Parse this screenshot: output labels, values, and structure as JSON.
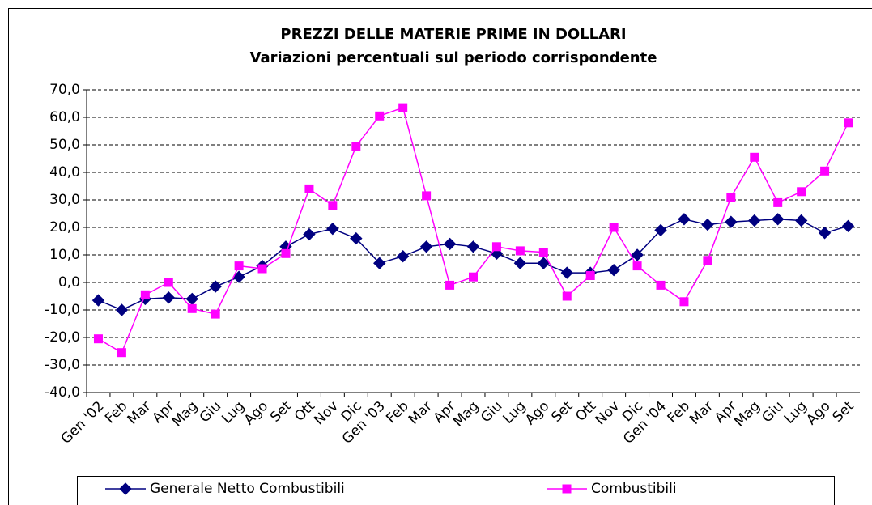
{
  "chart_data": {
    "type": "line",
    "title": "PREZZI DELLE MATERIE PRIME IN DOLLARI",
    "subtitle": "Variazioni percentuali sul periodo corrispondente",
    "categories": [
      "Gen '02",
      "Feb",
      "Mar",
      "Apr",
      "Mag",
      "Giu",
      "Lug",
      "Ago",
      "Set",
      "Ott",
      "Nov",
      "Dic",
      "Gen '03",
      "Feb",
      "Mar",
      "Apr",
      "Mag",
      "Giu",
      "Lug",
      "Ago",
      "Set",
      "Ott",
      "Nov",
      "Dic",
      "Gen '04",
      "Feb",
      "Mar",
      "Apr",
      "Mag",
      "Giu",
      "Lug",
      "Ago",
      "Set"
    ],
    "series": [
      {
        "name": "Generale Netto Combustibili",
        "color": "#000080",
        "marker": "diamond",
        "values": [
          -6.5,
          -10,
          -6,
          -5.5,
          -6,
          -1.5,
          2,
          6,
          13,
          17.5,
          19.5,
          16,
          7,
          9.5,
          13,
          14,
          13,
          10.5,
          7,
          7,
          3.5,
          3.5,
          4.5,
          10,
          19,
          23,
          21,
          22,
          22.5,
          23,
          22.5,
          18,
          20.5
        ]
      },
      {
        "name": "Combustibili",
        "color": "#ff00ff",
        "marker": "square",
        "values": [
          -20.5,
          -25.5,
          -4.5,
          0,
          -9.5,
          -11.5,
          6,
          5,
          10.5,
          34,
          28,
          49.5,
          60.5,
          63.5,
          31.5,
          -1,
          2,
          13,
          11.5,
          11,
          -5,
          2.5,
          20,
          6,
          -1,
          -7,
          8,
          31,
          45.5,
          29,
          33,
          40.5,
          58
        ]
      }
    ],
    "ylim": [
      -40,
      70
    ],
    "yticks": [
      {
        "value": -40,
        "label": "-40,0"
      },
      {
        "value": -30,
        "label": "-30,0"
      },
      {
        "value": -20,
        "label": "-20,0"
      },
      {
        "value": -10,
        "label": "-10,0"
      },
      {
        "value": 0,
        "label": "0,0"
      },
      {
        "value": 10,
        "label": "10,0"
      },
      {
        "value": 20,
        "label": "20,0"
      },
      {
        "value": 30,
        "label": "30,0"
      },
      {
        "value": 40,
        "label": "40,0"
      },
      {
        "value": 50,
        "label": "50,0"
      },
      {
        "value": 60,
        "label": "60,0"
      },
      {
        "value": 70,
        "label": "70,0"
      }
    ],
    "grid": true,
    "legend": "bottom"
  }
}
